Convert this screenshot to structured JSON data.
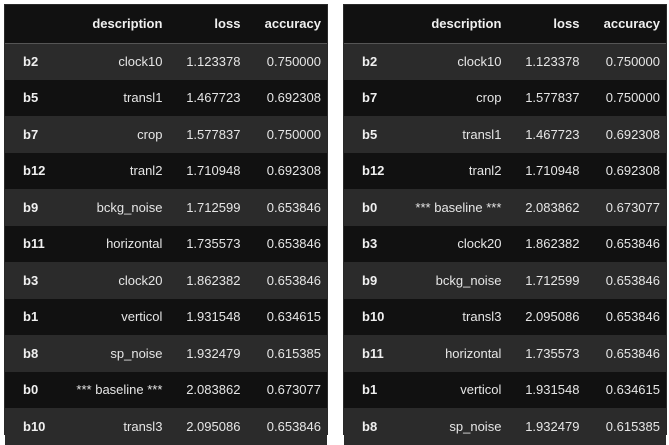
{
  "columns": [
    "",
    "description",
    "loss",
    "accuracy"
  ],
  "tables": [
    {
      "rows": [
        {
          "index": "b2",
          "description": "clock10",
          "loss": "1.123378",
          "accuracy": "0.750000"
        },
        {
          "index": "b5",
          "description": "transl1",
          "loss": "1.467723",
          "accuracy": "0.692308"
        },
        {
          "index": "b7",
          "description": "crop",
          "loss": "1.577837",
          "accuracy": "0.750000"
        },
        {
          "index": "b12",
          "description": "tranl2",
          "loss": "1.710948",
          "accuracy": "0.692308"
        },
        {
          "index": "b9",
          "description": "bckg_noise",
          "loss": "1.712599",
          "accuracy": "0.653846"
        },
        {
          "index": "b11",
          "description": "horizontal",
          "loss": "1.735573",
          "accuracy": "0.653846"
        },
        {
          "index": "b3",
          "description": "clock20",
          "loss": "1.862382",
          "accuracy": "0.653846"
        },
        {
          "index": "b1",
          "description": "verticol",
          "loss": "1.931548",
          "accuracy": "0.634615"
        },
        {
          "index": "b8",
          "description": "sp_noise",
          "loss": "1.932479",
          "accuracy": "0.615385"
        },
        {
          "index": "b0",
          "description": "*** baseline ***",
          "loss": "2.083862",
          "accuracy": "0.673077"
        },
        {
          "index": "b10",
          "description": "transl3",
          "loss": "2.095086",
          "accuracy": "0.653846"
        }
      ]
    },
    {
      "rows": [
        {
          "index": "b2",
          "description": "clock10",
          "loss": "1.123378",
          "accuracy": "0.750000"
        },
        {
          "index": "b7",
          "description": "crop",
          "loss": "1.577837",
          "accuracy": "0.750000"
        },
        {
          "index": "b5",
          "description": "transl1",
          "loss": "1.467723",
          "accuracy": "0.692308"
        },
        {
          "index": "b12",
          "description": "tranl2",
          "loss": "1.710948",
          "accuracy": "0.692308"
        },
        {
          "index": "b0",
          "description": "*** baseline ***",
          "loss": "2.083862",
          "accuracy": "0.673077"
        },
        {
          "index": "b3",
          "description": "clock20",
          "loss": "1.862382",
          "accuracy": "0.653846"
        },
        {
          "index": "b9",
          "description": "bckg_noise",
          "loss": "1.712599",
          "accuracy": "0.653846"
        },
        {
          "index": "b10",
          "description": "transl3",
          "loss": "2.095086",
          "accuracy": "0.653846"
        },
        {
          "index": "b11",
          "description": "horizontal",
          "loss": "1.735573",
          "accuracy": "0.653846"
        },
        {
          "index": "b1",
          "description": "verticol",
          "loss": "1.931548",
          "accuracy": "0.634615"
        },
        {
          "index": "b8",
          "description": "sp_noise",
          "loss": "1.932479",
          "accuracy": "0.615385"
        }
      ]
    }
  ]
}
